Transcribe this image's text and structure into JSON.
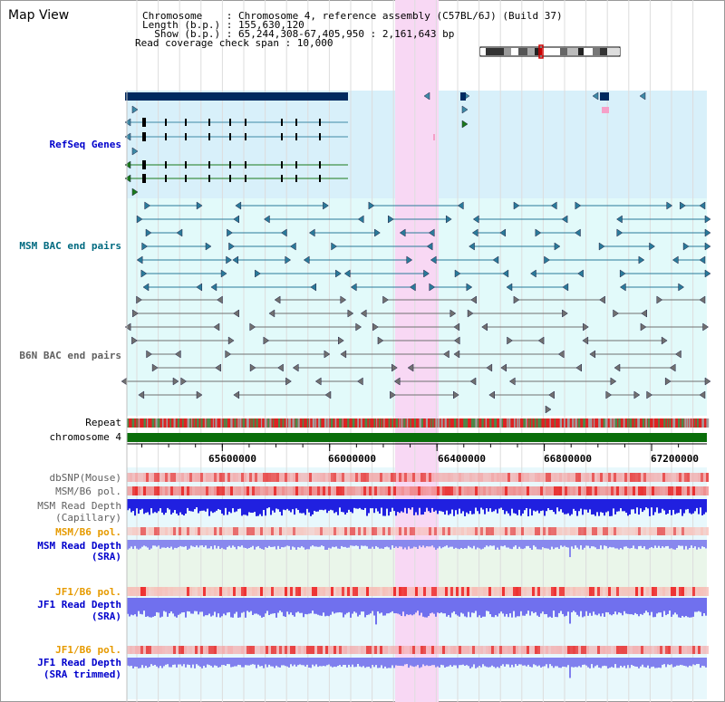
{
  "window_title": "Map View",
  "info": {
    "chromosome_line": "Chromosome    : Chromosome 4, reference assembly (C57BL/6J) (Build 37)",
    "length_line": "Length (b.p.) : 155,630,120",
    "show_line": "  Show (b.p.) : 65,244,308-67,405,950 : 2,161,643 bp",
    "coverage_line": "Read coverage check span : 10,000"
  },
  "tracks": {
    "refseq": "RefSeq Genes",
    "msm_bac": "MSM BAC end pairs",
    "b6n_bac": "B6N BAC end pairs",
    "repeat": "Repeat",
    "chromosome": "chromosome 4",
    "dbsnp": "dbSNP(Mouse)",
    "msm_b6_pol_1": "MSM/B6 pol.",
    "msm_read_depth_cap_1": "MSM Read Depth",
    "msm_read_depth_cap_2": "(Capillary)",
    "msm_b6_pol_2": "MSM/B6 pol.",
    "msm_read_depth_sra_1": "MSM Read Depth",
    "msm_read_depth_sra_2": "(SRA)",
    "jf1_b6_pol_1": "JF1/B6 pol.",
    "jf1_read_depth_sra_1": "JF1 Read Depth",
    "jf1_read_depth_sra_2": "(SRA)",
    "jf1_b6_pol_2": "JF1/B6 pol.",
    "jf1_read_depth_trim_1": "JF1 Read Depth",
    "jf1_read_depth_trim_2": "(SRA trimmed)"
  },
  "axis": {
    "range_bp": [
      65244308,
      67405950
    ],
    "ticks": [
      "65600000",
      "66000000",
      "66400000",
      "66800000",
      "67200000"
    ],
    "tick_values": [
      65600000,
      66000000,
      66400000,
      66800000,
      67200000
    ]
  },
  "colors": {
    "highlight": "#f8d8f4",
    "refseq_bg": "#d8f0fa",
    "bac_bg": "#e2fafa",
    "refseq_dark": "#002a60",
    "gene_blue": "#3e8aa6",
    "gene_green": "#1a7a1a",
    "msm_bac": "#2a7a9a",
    "b6n_bac": "#707070",
    "chromosome": "#0a6e0a",
    "label_blue": "#0000cc",
    "label_orange": "#e69a00",
    "label_teal": "#006a80"
  }
}
